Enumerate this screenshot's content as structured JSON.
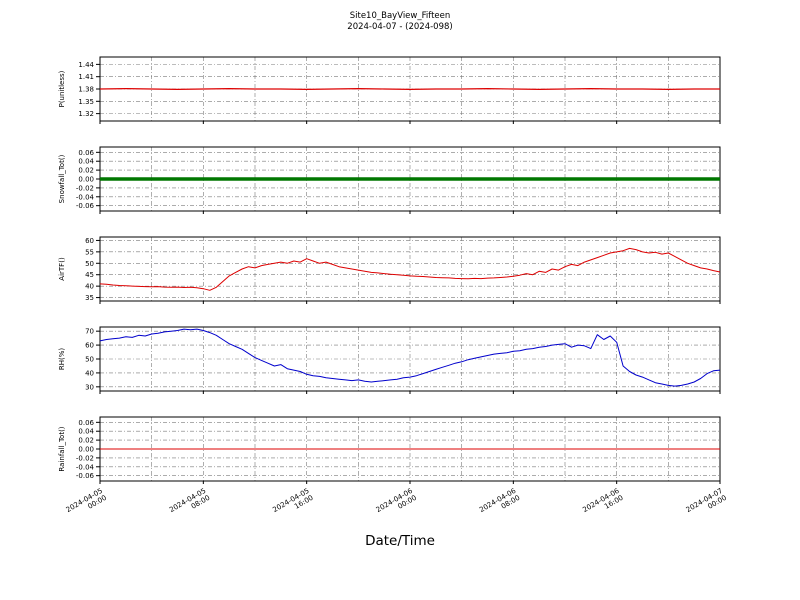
{
  "title": {
    "line1": "Site10_BayView_Fifteen",
    "line2": "2024-04-07 - (2024-098)"
  },
  "xlabel": "Date/Time",
  "chart_data": {
    "type": "line",
    "x_unit": "hours since 2024-04-05 00:00",
    "x_range": [
      0,
      48
    ],
    "grid": {
      "x_step": 4,
      "style": "gray dash-dot"
    },
    "x_ticks": [
      {
        "pos": 0,
        "date": "2024-04-05",
        "time": "00:00"
      },
      {
        "pos": 8,
        "date": "2024-04-05",
        "time": "08:00"
      },
      {
        "pos": 16,
        "date": "2024-04-05",
        "time": "16:00"
      },
      {
        "pos": 24,
        "date": "2024-04-06",
        "time": "00:00"
      },
      {
        "pos": 32,
        "date": "2024-04-06",
        "time": "08:00"
      },
      {
        "pos": 40,
        "date": "2024-04-06",
        "time": "16:00"
      },
      {
        "pos": 48,
        "date": "2024-04-07",
        "time": "00:00"
      }
    ],
    "panels": [
      {
        "type": "line",
        "ylabel": "P(unitless)",
        "color": "#dd0000",
        "line_width": 1.2,
        "ylim": [
          1.302,
          1.458
        ],
        "yticks": [
          1.32,
          1.35,
          1.38,
          1.41,
          1.44
        ],
        "ytick_labels": [
          "1.32",
          "1.35",
          "1.38",
          "1.41",
          "1.44"
        ],
        "x0": 0,
        "dt": 2,
        "y": [
          1.38,
          1.381,
          1.38,
          1.379,
          1.38,
          1.381,
          1.38,
          1.38,
          1.379,
          1.38,
          1.381,
          1.38,
          1.379,
          1.38,
          1.38,
          1.381,
          1.38,
          1.379,
          1.38,
          1.381,
          1.38,
          1.38,
          1.379,
          1.38,
          1.38
        ]
      },
      {
        "type": "line",
        "ylabel": "Snowfall_Tot()",
        "color": "#007700",
        "line_width": 3.5,
        "ylim": [
          -0.072,
          0.072
        ],
        "yticks": [
          -0.06,
          -0.04,
          -0.02,
          0.0,
          0.02,
          0.04,
          0.06
        ],
        "ytick_labels": [
          "-0.06",
          "-0.04",
          "-0.02",
          "0.00",
          "0.02",
          "0.04",
          "0.06"
        ],
        "x0": 0,
        "dt": 48,
        "y": [
          0.0,
          0.0
        ]
      },
      {
        "type": "line",
        "ylabel": "AirTF()",
        "color": "#dd0000",
        "line_width": 1,
        "ylim": [
          33.5,
          61.5
        ],
        "yticks": [
          35,
          40,
          45,
          50,
          55,
          60
        ],
        "ytick_labels": [
          "35",
          "40",
          "45",
          "50",
          "55",
          "60"
        ],
        "x0": 0,
        "dt": 0.5,
        "y": [
          41.0,
          40.8,
          40.5,
          40.3,
          40.2,
          40.0,
          39.9,
          39.8,
          39.7,
          39.8,
          39.6,
          39.5,
          39.6,
          39.4,
          39.5,
          39.3,
          38.9,
          38.2,
          39.5,
          42.0,
          44.5,
          46.0,
          47.5,
          48.5,
          48.0,
          49.0,
          49.5,
          50.0,
          50.5,
          50.0,
          51.0,
          50.5,
          52.0,
          51.0,
          50.0,
          50.5,
          49.5,
          48.5,
          48.0,
          47.5,
          47.0,
          46.5,
          46.0,
          45.8,
          45.5,
          45.2,
          45.0,
          44.8,
          44.5,
          44.3,
          44.2,
          44.0,
          43.8,
          43.7,
          43.6,
          43.4,
          43.3,
          43.2,
          43.4,
          43.3,
          43.5,
          43.6,
          43.8,
          44.0,
          44.3,
          44.8,
          45.5,
          45.0,
          46.5,
          46.0,
          47.5,
          47.0,
          48.5,
          49.5,
          49.0,
          50.5,
          51.5,
          52.5,
          53.5,
          54.5,
          55.0,
          55.5,
          56.5,
          56.0,
          55.0,
          54.5,
          54.8,
          54.0,
          54.5,
          53.0,
          51.5,
          50.0,
          49.0,
          48.0,
          47.5,
          46.8,
          46.2
        ]
      },
      {
        "type": "line",
        "ylabel": "RH(%)",
        "color": "#0000cc",
        "line_width": 1,
        "ylim": [
          27.0,
          73.0
        ],
        "yticks": [
          30,
          40,
          50,
          60,
          70
        ],
        "ytick_labels": [
          "30",
          "40",
          "50",
          "60",
          "70"
        ],
        "x0": 0,
        "dt": 0.5,
        "y": [
          63,
          64,
          64.5,
          65,
          66,
          65.5,
          67,
          66.5,
          68,
          68.5,
          69.5,
          70,
          70.5,
          71.5,
          71,
          71.5,
          70.5,
          69,
          67,
          64,
          61,
          59,
          57,
          54,
          51,
          49,
          47,
          45,
          46,
          43,
          42,
          41,
          39,
          38,
          37.5,
          36.5,
          36,
          35.5,
          35,
          34.5,
          35,
          34,
          33.5,
          34,
          34.5,
          35,
          35.5,
          36.5,
          37,
          38,
          39.5,
          41,
          42.5,
          44,
          45.5,
          47,
          48,
          49.5,
          50.5,
          51.5,
          52.5,
          53.5,
          54,
          54.5,
          55.5,
          56,
          57,
          57.5,
          58.5,
          59,
          60,
          60.5,
          61,
          58.5,
          60,
          59.5,
          57.5,
          67.5,
          64,
          66.5,
          62,
          45,
          41,
          38.5,
          37,
          35,
          33,
          32,
          31,
          30.5,
          31,
          32,
          33.5,
          36,
          39.5,
          41.5,
          42
        ]
      },
      {
        "type": "line",
        "ylabel": "Rainfall_Tot()",
        "color": "#dd0000",
        "line_width": 1,
        "ylim": [
          -0.072,
          0.072
        ],
        "yticks": [
          -0.06,
          -0.04,
          -0.02,
          0.0,
          0.02,
          0.04,
          0.06
        ],
        "ytick_labels": [
          "-0.06",
          "-0.04",
          "-0.02",
          "0.00",
          "0.02",
          "0.04",
          "0.06"
        ],
        "x0": 0,
        "dt": 48,
        "y": [
          0.0,
          0.0
        ]
      }
    ]
  }
}
